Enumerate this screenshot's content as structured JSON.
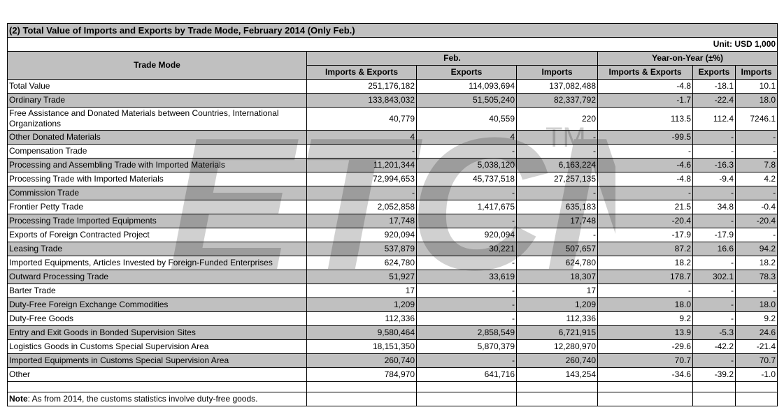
{
  "title": "(2) Total Value of Imports and Exports by Trade Mode, February 2014 (Only Feb.)",
  "unit": "Unit: USD 1,000",
  "headers": {
    "trade_mode": "Trade Mode",
    "feb": "Feb.",
    "yoy": "Year-on-Year (±%)",
    "imports_exports": "Imports & Exports",
    "exports": "Exports",
    "imports": "Imports"
  },
  "rows": [
    {
      "name": "Total Value",
      "ie": "251,176,182",
      "ex": "114,093,694",
      "im": "137,082,488",
      "y_ie": "-4.8",
      "y_ex": "-18.1",
      "y_im": "10.1",
      "shade": false
    },
    {
      "name": "Ordinary Trade",
      "ie": "133,843,032",
      "ex": "51,505,240",
      "im": "82,337,792",
      "y_ie": "-1.7",
      "y_ex": "-22.4",
      "y_im": "18.0",
      "shade": true
    },
    {
      "name": "Free Assistance and Donated Materials between Countries, International Organizations",
      "ie": "40,779",
      "ex": "40,559",
      "im": "220",
      "y_ie": "113.5",
      "y_ex": "112.4",
      "y_im": "7246.1",
      "shade": false,
      "wrap": true
    },
    {
      "name": "Other Donated Materials",
      "ie": "4",
      "ex": "4",
      "im": "-",
      "y_ie": "-99.5",
      "y_ex": "-",
      "y_im": "-",
      "shade": true
    },
    {
      "name": "Compensation Trade",
      "ie": "-",
      "ex": "-",
      "im": "-",
      "y_ie": "-",
      "y_ex": "-",
      "y_im": "-",
      "shade": false
    },
    {
      "name": "Processing and Assembling Trade with Imported Materials",
      "ie": "11,201,344",
      "ex": "5,038,120",
      "im": "6,163,224",
      "y_ie": "-4.6",
      "y_ex": "-16.3",
      "y_im": "7.8",
      "shade": true
    },
    {
      "name": "Processing Trade with Imported Materials",
      "ie": "72,994,653",
      "ex": "45,737,518",
      "im": "27,257,135",
      "y_ie": "-4.8",
      "y_ex": "-9.4",
      "y_im": "4.2",
      "shade": false
    },
    {
      "name": "Commission Trade",
      "ie": "-",
      "ex": "-",
      "im": "-",
      "y_ie": "-",
      "y_ex": "-",
      "y_im": "-",
      "shade": true
    },
    {
      "name": "Frontier Petty Trade",
      "ie": "2,052,858",
      "ex": "1,417,675",
      "im": "635,183",
      "y_ie": "21.5",
      "y_ex": "34.8",
      "y_im": "-0.4",
      "shade": false
    },
    {
      "name": "Processing Trade Imported Equipments",
      "ie": "17,748",
      "ex": "-",
      "im": "17,748",
      "y_ie": "-20.4",
      "y_ex": "-",
      "y_im": "-20.4",
      "shade": true
    },
    {
      "name": "Exports of Foreign Contracted Project",
      "ie": "920,094",
      "ex": "920,094",
      "im": "-",
      "y_ie": "-17.9",
      "y_ex": "-17.9",
      "y_im": "-",
      "shade": false
    },
    {
      "name": "Leasing Trade",
      "ie": "537,879",
      "ex": "30,221",
      "im": "507,657",
      "y_ie": "87.2",
      "y_ex": "16.6",
      "y_im": "94.2",
      "shade": true
    },
    {
      "name": "Imported Equipments, Articles Invested by Foreign-Funded Enterprises",
      "ie": "624,780",
      "ex": "-",
      "im": "624,780",
      "y_ie": "18.2",
      "y_ex": "-",
      "y_im": "18.2",
      "shade": false
    },
    {
      "name": "Outward Processing Trade",
      "ie": "51,927",
      "ex": "33,619",
      "im": "18,307",
      "y_ie": "178.7",
      "y_ex": "302.1",
      "y_im": "78.3",
      "shade": true
    },
    {
      "name": "Barter Trade",
      "ie": "17",
      "ex": "-",
      "im": "17",
      "y_ie": "-",
      "y_ex": "-",
      "y_im": "-",
      "shade": false
    },
    {
      "name": "Duty-Free Foreign Exchange Commodities",
      "ie": "1,209",
      "ex": "-",
      "im": "1,209",
      "y_ie": "18.0",
      "y_ex": "-",
      "y_im": "18.0",
      "shade": true
    },
    {
      "name": "Duty-Free Goods",
      "ie": "112,336",
      "ex": "-",
      "im": "112,336",
      "y_ie": "9.2",
      "y_ex": "-",
      "y_im": "9.2",
      "shade": false
    },
    {
      "name": "Entry and Exit Goods in Bonded Supervision Sites",
      "ie": "9,580,464",
      "ex": "2,858,549",
      "im": "6,721,915",
      "y_ie": "13.9",
      "y_ex": "-5.3",
      "y_im": "24.6",
      "shade": true
    },
    {
      "name": "Logistics Goods in Customs Special Supervision Area",
      "ie": "18,151,350",
      "ex": "5,870,379",
      "im": "12,280,970",
      "y_ie": "-29.6",
      "y_ex": "-42.2",
      "y_im": "-21.4",
      "shade": false
    },
    {
      "name": "Imported Equipments in Customs Special Supervision Area",
      "ie": "260,740",
      "ex": "-",
      "im": "260,740",
      "y_ie": "70.7",
      "y_ex": "-",
      "y_im": "70.7",
      "shade": true
    },
    {
      "name": "Other",
      "ie": "784,970",
      "ex": "641,716",
      "im": "143,254",
      "y_ie": "-34.6",
      "y_ex": "-39.2",
      "y_im": "-1.0",
      "shade": false
    }
  ],
  "note": {
    "label": "Note",
    "text": ": As from 2014, the customs statistics involve duty-free goods."
  },
  "watermark": {
    "text": "ETCN",
    "tm": "TM"
  }
}
